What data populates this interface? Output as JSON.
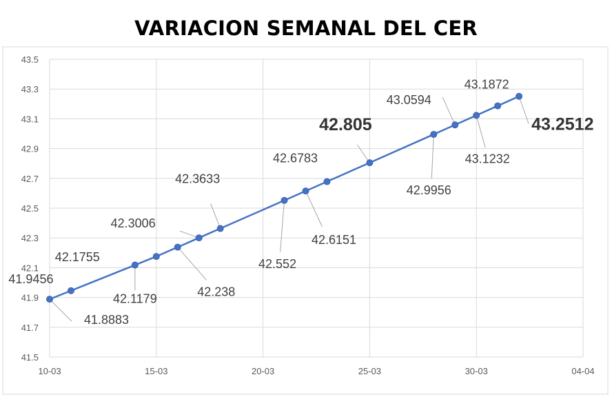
{
  "chart_data": {
    "type": "line",
    "title": "VARIACION SEMANAL DEL CER",
    "x_ticks": [
      "10-03",
      "15-03",
      "20-03",
      "25-03",
      "30-03",
      "04-04"
    ],
    "y_ticks": [
      "41.5",
      "41.7",
      "41.9",
      "42.1",
      "42.3",
      "42.5",
      "42.7",
      "42.9",
      "43.1",
      "43.3",
      "43.5"
    ],
    "ylim": [
      41.5,
      43.5
    ],
    "xlim": [
      "10-03",
      "04-04"
    ],
    "grid": true,
    "line_color": "#4472C4",
    "series": [
      {
        "x": [
          "10-03",
          "11-03",
          "14-03",
          "15-03",
          "16-03",
          "17-03",
          "18-03",
          "21-03",
          "22-03",
          "23-03",
          "25-03",
          "28-03",
          "29-03",
          "30-03",
          "31-03",
          "01-04"
        ],
        "values": [
          41.8883,
          41.9456,
          42.1179,
          42.1755,
          42.238,
          42.3006,
          42.3633,
          42.552,
          42.6151,
          42.6783,
          42.805,
          42.9956,
          43.0594,
          43.1232,
          43.1872,
          43.2512
        ],
        "labels": [
          "41.8883",
          "41.9456",
          "42.1179",
          "42.1755",
          "42.238",
          "42.3006",
          "42.3633",
          "42.552",
          "42.6151",
          "42.6783",
          "42.805",
          "42.9956",
          "43.0594",
          "43.1232",
          "43.1872",
          "43.2512"
        ]
      }
    ]
  }
}
